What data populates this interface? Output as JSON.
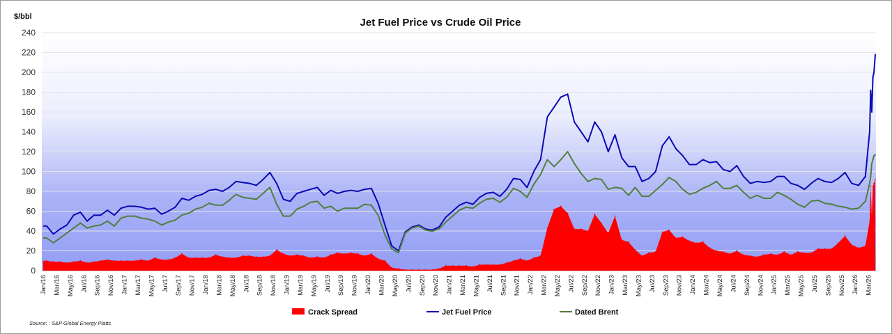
{
  "chart_data": {
    "type": "line",
    "title": "Jet Fuel Price vs Crude Oil Price",
    "ylabel": "$/bbl",
    "xlabel": "",
    "ylim": [
      0,
      240
    ],
    "yticks": [
      0,
      20,
      40,
      60,
      80,
      100,
      120,
      140,
      160,
      180,
      200,
      220,
      240
    ],
    "grid": true,
    "legend_position": "bottom",
    "source": "Source: : S&P Global Energy Platts",
    "xticks": [
      "Jan/16",
      "Mar/16",
      "May/16",
      "Jul/16",
      "Sep/16",
      "Nov/16",
      "Jan/17",
      "Mar/17",
      "May/17",
      "Jul/17",
      "Sep/17",
      "Nov/17",
      "Jan/18",
      "Mar/18",
      "May/18",
      "Jul/18",
      "Sep/18",
      "Nov/18",
      "Jan/19",
      "Mar/19",
      "May/19",
      "Jul/19",
      "Sep/19",
      "Nov/19",
      "Jan/20",
      "Mar/20",
      "May/20",
      "Jul/20",
      "Sep/20",
      "Nov/20",
      "Jan/21",
      "Mar/21",
      "May/21",
      "Jul/21",
      "Sep/21",
      "Nov/21",
      "Jan/22",
      "Mar/22",
      "May/22",
      "Jul/22",
      "Sep/22",
      "Nov/22",
      "Jan/23",
      "Mar/23",
      "May/23",
      "Jul/23",
      "Sep/23",
      "Nov/23",
      "Jan/24",
      "Mar/24",
      "May/24",
      "Jul/24",
      "Sep/24",
      "Nov/24",
      "Jan/25",
      "Mar/25",
      "May/25",
      "Jul/25",
      "Sep/25",
      "Nov/25",
      "Jan/26",
      "Mar/26"
    ],
    "monthly_start": "2016-01",
    "extra_dates": [
      "2026-03-05",
      "2026-03-10",
      "2026-03-15",
      "2026-03-20",
      "2026-03-25",
      "2026-03-31"
    ],
    "series": [
      {
        "name": "Crack Spread",
        "kind": "area",
        "color": "#ff0000",
        "values": [
          10,
          9,
          9,
          8,
          9,
          10,
          8,
          9,
          10,
          11,
          10,
          10,
          10,
          10,
          11,
          10,
          13,
          11,
          11,
          13,
          17,
          13,
          13,
          13,
          13,
          16,
          14,
          13,
          13,
          15,
          15,
          14,
          14,
          15,
          21,
          17,
          15,
          16,
          15,
          13,
          14,
          13,
          16,
          18,
          17,
          18,
          17,
          15,
          17,
          12,
          10,
          3,
          2,
          1,
          1,
          1,
          1,
          1,
          2,
          5,
          5,
          5,
          5,
          4,
          6,
          6,
          6,
          6,
          8,
          10,
          12,
          10,
          13,
          15,
          43,
          62,
          65,
          58,
          42,
          42,
          40,
          57,
          48,
          38,
          55,
          31,
          29,
          21,
          15,
          18,
          19,
          39,
          41,
          33,
          34,
          30,
          28,
          29,
          23,
          20,
          19,
          17,
          20,
          16,
          15,
          14,
          16,
          17,
          16,
          19,
          16,
          19,
          18,
          18,
          22,
          22,
          22,
          28,
          35,
          26,
          23,
          25,
          50,
          85,
          55,
          85,
          88,
          92
        ]
      },
      {
        "name": "Jet Fuel Price",
        "kind": "line",
        "color": "#0a0ab4",
        "values": [
          45,
          37,
          42,
          46,
          56,
          59,
          50,
          56,
          56,
          61,
          56,
          63,
          65,
          65,
          64,
          62,
          63,
          57,
          60,
          64,
          73,
          71,
          75,
          77,
          81,
          82,
          80,
          84,
          90,
          89,
          88,
          86,
          92,
          99,
          88,
          72,
          70,
          78,
          80,
          82,
          84,
          76,
          81,
          78,
          80,
          81,
          80,
          82,
          83,
          68,
          46,
          25,
          20,
          39,
          44,
          46,
          42,
          41,
          44,
          54,
          60,
          66,
          69,
          67,
          74,
          78,
          79,
          75,
          82,
          93,
          92,
          84,
          100,
          112,
          155,
          165,
          175,
          178,
          150,
          140,
          130,
          150,
          140,
          120,
          137,
          114,
          105,
          105,
          90,
          93,
          100,
          126,
          135,
          123,
          116,
          107,
          107,
          112,
          109,
          110,
          102,
          100,
          106,
          95,
          88,
          90,
          89,
          90,
          95,
          95,
          88,
          86,
          82,
          88,
          93,
          90,
          89,
          93,
          99,
          88,
          86,
          95,
          140,
          182,
          160,
          195,
          200,
          218
        ]
      },
      {
        "name": "Dated Brent",
        "kind": "line",
        "color": "#4f7f3c",
        "values": [
          33,
          28,
          33,
          38,
          43,
          48,
          43,
          45,
          46,
          50,
          45,
          53,
          55,
          55,
          53,
          52,
          50,
          46,
          49,
          51,
          56,
          58,
          62,
          64,
          68,
          66,
          66,
          71,
          77,
          74,
          73,
          72,
          78,
          84,
          67,
          55,
          55,
          62,
          65,
          69,
          70,
          63,
          65,
          60,
          63,
          63,
          63,
          67,
          66,
          56,
          36,
          22,
          18,
          38,
          43,
          45,
          41,
          40,
          42,
          49,
          55,
          61,
          64,
          63,
          68,
          72,
          73,
          69,
          74,
          83,
          80,
          74,
          87,
          97,
          112,
          105,
          112,
          120,
          108,
          98,
          90,
          93,
          92,
          82,
          84,
          83,
          76,
          84,
          75,
          75,
          81,
          87,
          94,
          90,
          82,
          77,
          79,
          83,
          86,
          90,
          83,
          83,
          86,
          79,
          73,
          76,
          73,
          73,
          79,
          76,
          72,
          67,
          64,
          70,
          71,
          68,
          67,
          65,
          64,
          62,
          63,
          70,
          88,
          95,
          108,
          112,
          116,
          117
        ]
      }
    ]
  }
}
